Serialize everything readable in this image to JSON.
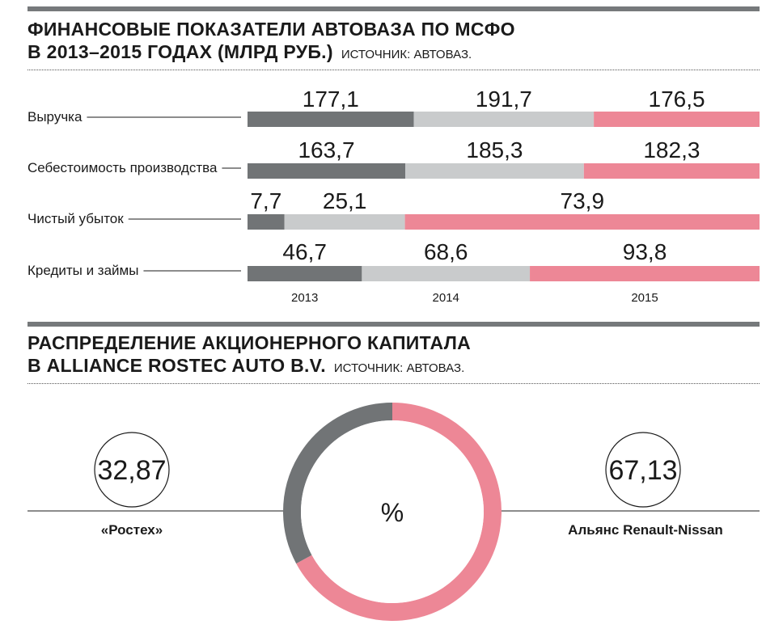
{
  "chart_data": [
    {
      "type": "bar",
      "orientation": "horizontal-stacked",
      "title": "ФИНАНСОВЫЕ ПОКАЗАТЕЛИ АВТОВАЗА ПО МСФО В 2013–2015 ГОДАХ (МЛРД РУБ.)",
      "title_line1": "ФИНАНСОВЫЕ ПОКАЗАТЕЛИ АВТОВАЗА ПО МСФО",
      "title_line2": "В 2013–2015 ГОДАХ (МЛРД РУБ.)",
      "source": "ИСТОЧНИК: АВТОВАЗ.",
      "categories": [
        "Выручка",
        "Себестоимость производства",
        "Чистый убыток",
        "Кредиты и займы"
      ],
      "series": [
        {
          "name": "2013",
          "color": "#717476",
          "values": [
            177.1,
            163.7,
            7.7,
            46.7
          ],
          "labels": [
            "177,1",
            "163,7",
            "7,7",
            "46,7"
          ]
        },
        {
          "name": "2014",
          "color": "#c9cbcc",
          "values": [
            191.7,
            185.3,
            25.1,
            68.6
          ],
          "labels": [
            "191,7",
            "185,3",
            "25,1",
            "68,6"
          ]
        },
        {
          "name": "2015",
          "color": "#ed8796",
          "values": [
            176.5,
            182.3,
            73.9,
            93.8
          ],
          "labels": [
            "176,5",
            "182,3",
            "73,9",
            "93,8"
          ]
        }
      ],
      "year_labels": [
        "2013",
        "2014",
        "2015"
      ]
    },
    {
      "type": "pie",
      "variant": "donut",
      "title": "РАСПРЕДЕЛЕНИЕ АКЦИОНЕРНОГО КАПИТАЛА В ALLIANCE ROSTEC AUTO B.V.",
      "title_line1": "РАСПРЕДЕЛЕНИЕ АКЦИОНЕРНОГО КАПИТАЛА",
      "title_line2": "В ALLIANCE ROSTEC AUTO B.V.",
      "source": "ИСТОЧНИК: АВТОВАЗ.",
      "unit": "%",
      "slices": [
        {
          "name": "«Ростех»",
          "value": 32.87,
          "label": "32,87",
          "color": "#717476"
        },
        {
          "name": "Альянс Renault-Nissan",
          "value": 67.13,
          "label": "67,13",
          "color": "#ed8796"
        }
      ]
    }
  ]
}
